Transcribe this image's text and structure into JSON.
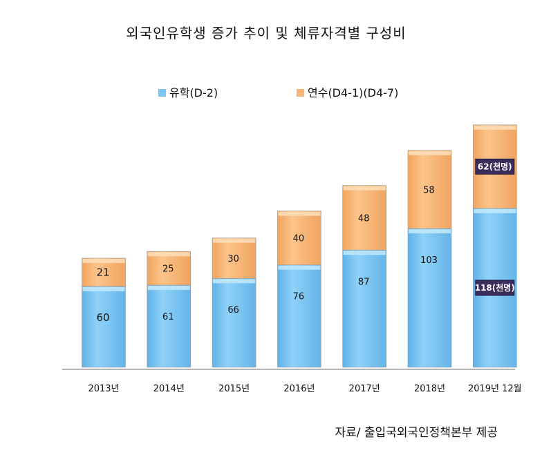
{
  "chart_data": {
    "type": "bar",
    "stacked": true,
    "title": "외국인유학생 증가 추이 및 체류자격별 구성비",
    "categories": [
      "2013년",
      "2014년",
      "2015년",
      "2016년",
      "2017년",
      "2018년",
      "2019년 12월"
    ],
    "series": [
      {
        "name": "유학(D-2)",
        "color": "#7cc6f4",
        "values": [
          60,
          61,
          66,
          76,
          87,
          103,
          118
        ],
        "labels": [
          "60",
          "61",
          "66",
          "76",
          "87",
          "103",
          "118(천명)"
        ]
      },
      {
        "name": "연수(D4-1)(D4-7)",
        "color": "#f9b676",
        "values": [
          21,
          25,
          30,
          40,
          48,
          58,
          62
        ],
        "labels": [
          "21",
          "25",
          "30",
          "40",
          "48",
          "58",
          "62(천명)"
        ]
      }
    ],
    "legend_position": "top",
    "grid": false,
    "ylim": [
      0,
      190
    ],
    "source": "자료/ 출입국외국인정책본부 제공"
  }
}
